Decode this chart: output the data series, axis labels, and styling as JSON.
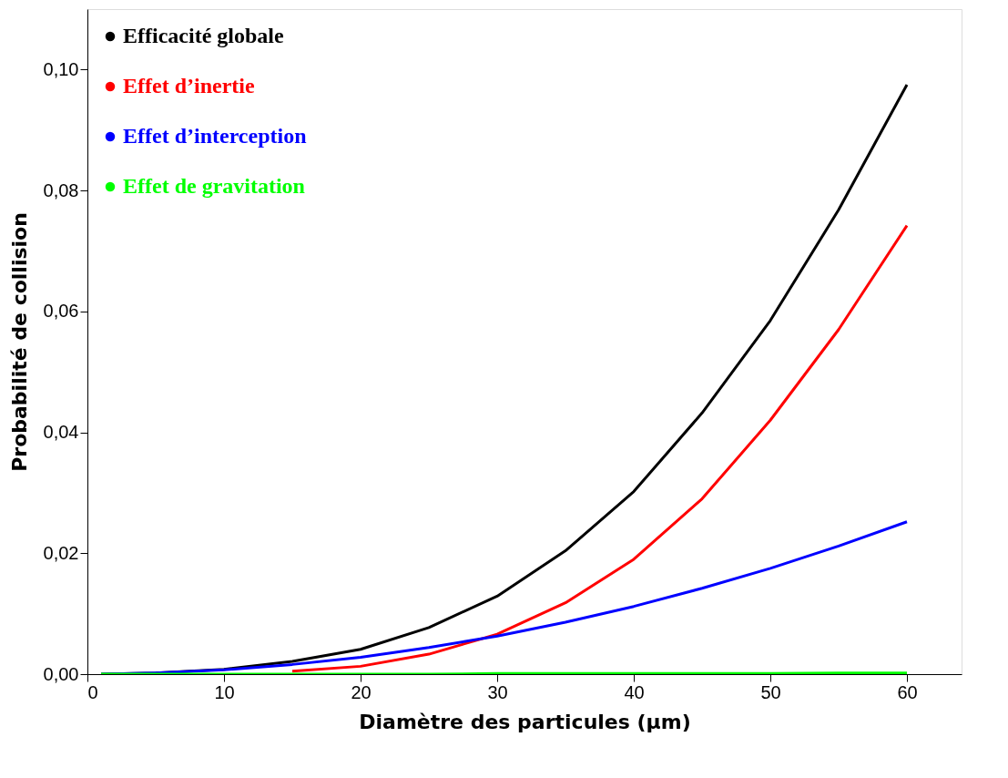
{
  "chart_data": {
    "type": "line",
    "xlabel": "Diamètre des particules (µm)",
    "ylabel": "Probabilité de collision",
    "x": [
      1,
      5,
      10,
      15,
      20,
      25,
      30,
      35,
      40,
      45,
      50,
      55,
      60
    ],
    "series": [
      {
        "name": "Efficacité globale",
        "color": "#000000",
        "values": [
          0,
          0.0002,
          0.0008,
          0.0021,
          0.0041,
          0.0077,
          0.0129,
          0.0204,
          0.0302,
          0.0432,
          0.0585,
          0.0768,
          0.0975
        ]
      },
      {
        "name": "Effet d’inertie",
        "color": "#ff0000",
        "values": [
          null,
          null,
          null,
          0.0005,
          0.0013,
          0.0033,
          0.0066,
          0.0118,
          0.019,
          0.029,
          0.042,
          0.057,
          0.0742
        ]
      },
      {
        "name": "Effet d’interception",
        "color": "#0000ff",
        "values": [
          0,
          0.0002,
          0.0007,
          0.0016,
          0.0028,
          0.0044,
          0.0063,
          0.0086,
          0.0112,
          0.0142,
          0.0175,
          0.0212,
          0.0252
        ]
      },
      {
        "name": "Effet de gravitation",
        "color": "#00ff00",
        "values": [
          0,
          0,
          0,
          0,
          0,
          0,
          0.0001,
          0.0001,
          0.0001,
          0.0001,
          0.0001,
          0.0002,
          0.0002
        ]
      }
    ],
    "xlim": [
      0,
      64
    ],
    "xticks": [
      0,
      10,
      20,
      30,
      40,
      50,
      60
    ],
    "ylim": [
      0,
      0.11
    ],
    "yticks": [
      {
        "value": 0,
        "label": "0,00"
      },
      {
        "value": 0.02,
        "label": "0,02"
      },
      {
        "value": 0.04,
        "label": "0,04"
      },
      {
        "value": 0.06,
        "label": "0,06"
      },
      {
        "value": 0.08,
        "label": "0,08"
      },
      {
        "value": 0.1,
        "label": "0,10"
      }
    ],
    "grid": false,
    "legend": "top left",
    "marker": "none",
    "line_style": "solid"
  }
}
